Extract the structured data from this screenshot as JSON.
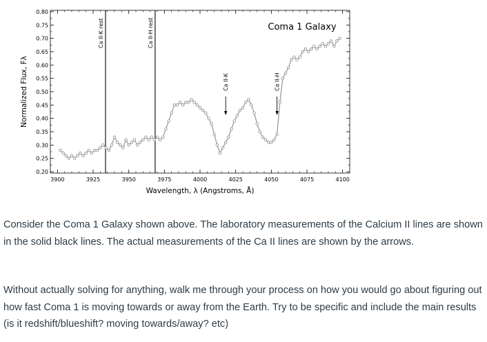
{
  "chart_data": {
    "type": "line",
    "title": "Coma 1 Galaxy",
    "xlabel": "Wavelength, λ (Angstroms, Å)",
    "ylabel": "Normalized Flux, Fλ",
    "xlim": [
      3895,
      4105
    ],
    "ylim": [
      0.195,
      0.805
    ],
    "xticks": [
      3900,
      3925,
      3950,
      3975,
      4000,
      4025,
      4050,
      4075,
      4100
    ],
    "yticks": [
      "0.20",
      "0.25",
      "0.30",
      "0.35",
      "0.40",
      "0.45",
      "0.50",
      "0.55",
      "0.60",
      "0.65",
      "0.70",
      "0.75",
      "0.80"
    ],
    "grid": false,
    "series": [
      {
        "x": [
          3902,
          3904,
          3906,
          3908,
          3910,
          3912,
          3914,
          3916,
          3918,
          3920,
          3922,
          3924,
          3926,
          3928,
          3930,
          3932,
          3934,
          3936,
          3938,
          3940,
          3942,
          3944,
          3946,
          3948,
          3950,
          3952,
          3954,
          3956,
          3958,
          3960,
          3962,
          3964,
          3966,
          3968,
          3970,
          3972,
          3974,
          3976,
          3978,
          3980,
          3982,
          3984,
          3986,
          3988,
          3990,
          3992,
          3994,
          3996,
          3998,
          4000,
          4002,
          4004,
          4006,
          4008,
          4010,
          4012,
          4014,
          4016,
          4018,
          4020,
          4022,
          4024,
          4026,
          4028,
          4030,
          4032,
          4034,
          4036,
          4038,
          4040,
          4042,
          4044,
          4046,
          4048,
          4050,
          4052,
          4054,
          4056,
          4058,
          4060,
          4062,
          4064,
          4066,
          4068,
          4070,
          4072,
          4074,
          4076,
          4078,
          4080,
          4082,
          4084,
          4086,
          4088,
          4090,
          4092,
          4094,
          4096,
          4098
        ],
        "y": [
          0.28,
          0.27,
          0.26,
          0.25,
          0.26,
          0.25,
          0.26,
          0.27,
          0.26,
          0.27,
          0.28,
          0.27,
          0.28,
          0.28,
          0.29,
          0.3,
          0.29,
          0.28,
          0.3,
          0.33,
          0.31,
          0.3,
          0.29,
          0.32,
          0.3,
          0.31,
          0.32,
          0.3,
          0.31,
          0.32,
          0.33,
          0.32,
          0.33,
          0.32,
          0.33,
          0.32,
          0.33,
          0.36,
          0.39,
          0.42,
          0.45,
          0.45,
          0.46,
          0.45,
          0.46,
          0.46,
          0.47,
          0.46,
          0.45,
          0.44,
          0.43,
          0.42,
          0.4,
          0.38,
          0.34,
          0.3,
          0.27,
          0.29,
          0.31,
          0.33,
          0.36,
          0.39,
          0.41,
          0.43,
          0.44,
          0.46,
          0.47,
          0.45,
          0.42,
          0.38,
          0.35,
          0.33,
          0.32,
          0.31,
          0.31,
          0.32,
          0.34,
          0.46,
          0.55,
          0.57,
          0.59,
          0.62,
          0.63,
          0.62,
          0.63,
          0.65,
          0.66,
          0.65,
          0.66,
          0.67,
          0.66,
          0.67,
          0.68,
          0.67,
          0.68,
          0.69,
          0.67,
          0.69,
          0.7
        ]
      }
    ],
    "annotations": [
      {
        "text": "Ca II-K rest",
        "type": "vertical-line",
        "x": 3933.7
      },
      {
        "text": "Ca II-H rest",
        "type": "vertical-line",
        "x": 3968.5
      },
      {
        "text": "Ca II-K",
        "type": "arrow",
        "x": 4018
      },
      {
        "text": "Ca II-H",
        "type": "arrow",
        "x": 4054
      }
    ]
  },
  "question": {
    "intro": "Consider the Coma 1 Galaxy shown above. The laboratory measurements of the Calcium II lines are shown in the solid black lines. The actual measurements of the Ca II lines are shown by the arrows.",
    "prompt": "Without actually solving for anything, walk me through your process on how you would go about figuring out how fast Coma 1 is moving towards or away from the Earth. Try to be specific and include the main results (is it redshift/blueshift? moving towards/away? etc)"
  }
}
